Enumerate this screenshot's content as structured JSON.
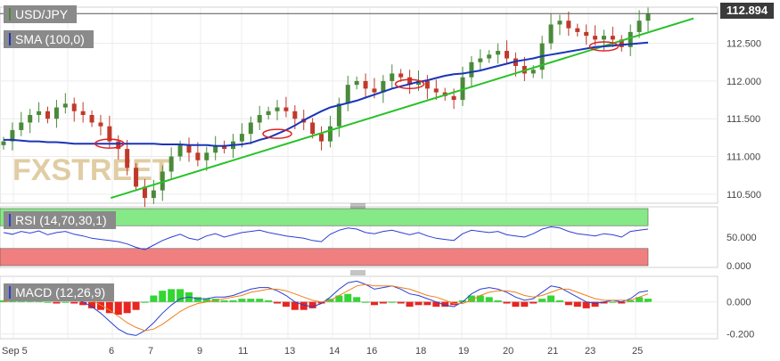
{
  "instrument": "USD/JPY",
  "last_price": "112.894",
  "watermark": "FXSTREET",
  "colors": {
    "candle_up": "#4a8a3a",
    "candle_down": "#c0392b",
    "sma": "#1a35b8",
    "trendline": "#27c227",
    "rsi_line": "#2b3fd6",
    "rsi_overbought_zone": "#86e887",
    "rsi_oversold_zone": "#f08080",
    "macd_line": "#2b3fd6",
    "signal_line": "#f07f1e",
    "hist_positive": "#33d633",
    "hist_negative": "#e8251f",
    "label_bg": "#8a8a8a",
    "price_tag_bg": "#3b3b3b"
  },
  "chart_data": [
    {
      "type": "candlestick",
      "title": "USD/JPY",
      "ylim": [
        110.38,
        112.98
      ],
      "y_ticks": [
        "112.500",
        "112.000",
        "111.500",
        "111.000",
        "110.500"
      ],
      "x_ticks": [
        "Sep 5",
        "6",
        "7",
        "9",
        "11",
        "13",
        "14",
        "16",
        "18",
        "19",
        "20",
        "21",
        "23",
        "25"
      ],
      "close_series": [
        111.2,
        111.35,
        111.45,
        111.55,
        111.6,
        111.5,
        111.65,
        111.7,
        111.6,
        111.55,
        111.45,
        111.4,
        111.2,
        111.1,
        110.85,
        110.6,
        110.45,
        110.55,
        110.8,
        111.0,
        111.15,
        111.05,
        110.95,
        111.05,
        111.15,
        111.1,
        111.2,
        111.3,
        111.45,
        111.55,
        111.6,
        111.65,
        111.6,
        111.5,
        111.45,
        111.3,
        111.2,
        111.4,
        111.7,
        111.95,
        112.0,
        111.9,
        111.85,
        112.0,
        112.1,
        112.05,
        111.95,
        112.0,
        111.9,
        111.85,
        111.8,
        111.75,
        112.05,
        112.25,
        112.3,
        112.35,
        112.4,
        112.3,
        112.2,
        112.1,
        112.15,
        112.5,
        112.75,
        112.8,
        112.7,
        112.65,
        112.6,
        112.55,
        112.6,
        112.55,
        112.45,
        112.65,
        112.8,
        112.894
      ],
      "series": [
        {
          "name": "SMA (100,0)",
          "values": [
            111.22,
            111.22,
            111.21,
            111.2,
            111.2,
            111.19,
            111.19,
            111.18,
            111.17,
            111.17,
            111.17,
            111.17,
            111.17,
            111.17,
            111.17,
            111.17,
            111.17,
            111.17,
            111.16,
            111.16,
            111.16,
            111.15,
            111.15,
            111.15,
            111.14,
            111.14,
            111.15,
            111.16,
            111.18,
            111.22,
            111.25,
            111.3,
            111.35,
            111.41,
            111.48,
            111.54,
            111.6,
            111.65,
            111.68,
            111.71,
            111.74,
            111.78,
            111.82,
            111.86,
            111.9,
            111.93,
            111.96,
            111.99,
            112.01,
            112.04,
            112.07,
            112.09,
            112.1,
            112.12,
            112.14,
            112.17,
            112.2,
            112.23,
            112.26,
            112.28,
            112.3,
            112.33,
            112.35,
            112.37,
            112.39,
            112.41,
            112.43,
            112.45,
            112.46,
            112.47,
            112.48,
            112.49,
            112.5,
            112.51
          ]
        },
        {
          "name": "trendline",
          "points": [
            [
              0.23,
              110.45
            ],
            [
              1.48,
              112.83
            ]
          ]
        }
      ]
    },
    {
      "type": "line",
      "title": "RSI (14,70,30,1)",
      "y_ticks": [
        "50.000",
        "0.000"
      ],
      "ylim": [
        0,
        100
      ],
      "overbought": 70,
      "oversold": 30,
      "series": [
        {
          "name": "RSI",
          "values": [
            58,
            55,
            60,
            57,
            61,
            54,
            58,
            60,
            55,
            52,
            48,
            46,
            44,
            42,
            38,
            32,
            28,
            36,
            44,
            50,
            55,
            48,
            45,
            52,
            56,
            50,
            54,
            58,
            60,
            62,
            58,
            55,
            52,
            50,
            48,
            44,
            42,
            55,
            62,
            66,
            64,
            58,
            56,
            60,
            62,
            58,
            54,
            58,
            52,
            48,
            46,
            44,
            56,
            62,
            60,
            58,
            60,
            54,
            52,
            50,
            56,
            64,
            68,
            66,
            60,
            56,
            54,
            52,
            56,
            54,
            50,
            60,
            62,
            64
          ]
        }
      ]
    },
    {
      "type": "line",
      "title": "MACD (12,26,9)",
      "y_ticks": [
        "0.000",
        "-0.200"
      ],
      "ylim": [
        -0.23,
        0.16
      ],
      "series": [
        {
          "name": "MACD",
          "values": [
            0.01,
            0.02,
            0.04,
            0.05,
            0.06,
            0.04,
            0.03,
            0.03,
            0.02,
            0.0,
            -0.03,
            -0.07,
            -0.12,
            -0.17,
            -0.2,
            -0.21,
            -0.18,
            -0.13,
            -0.07,
            -0.02,
            0.02,
            0.03,
            0.02,
            0.02,
            0.03,
            0.03,
            0.04,
            0.06,
            0.08,
            0.09,
            0.09,
            0.07,
            0.04,
            0.0,
            -0.02,
            -0.03,
            -0.01,
            0.03,
            0.08,
            0.12,
            0.13,
            0.11,
            0.08,
            0.09,
            0.1,
            0.08,
            0.05,
            0.04,
            0.02,
            0.0,
            -0.02,
            -0.03,
            0.0,
            0.05,
            0.08,
            0.09,
            0.08,
            0.06,
            0.03,
            0.01,
            0.02,
            0.06,
            0.1,
            0.09,
            0.06,
            0.03,
            0.0,
            -0.01,
            0.0,
            0.01,
            0.0,
            0.02,
            0.06,
            0.07
          ]
        },
        {
          "name": "Signal",
          "values": [
            0.0,
            0.01,
            0.02,
            0.03,
            0.04,
            0.04,
            0.04,
            0.03,
            0.03,
            0.02,
            0.01,
            -0.02,
            -0.05,
            -0.09,
            -0.13,
            -0.16,
            -0.18,
            -0.17,
            -0.14,
            -0.1,
            -0.06,
            -0.03,
            -0.01,
            0.0,
            0.01,
            0.02,
            0.03,
            0.04,
            0.06,
            0.07,
            0.08,
            0.08,
            0.07,
            0.05,
            0.03,
            0.01,
            0.0,
            0.01,
            0.04,
            0.07,
            0.1,
            0.11,
            0.1,
            0.1,
            0.1,
            0.09,
            0.08,
            0.06,
            0.04,
            0.03,
            0.01,
            -0.01,
            -0.01,
            0.01,
            0.04,
            0.06,
            0.07,
            0.07,
            0.06,
            0.04,
            0.03,
            0.04,
            0.06,
            0.08,
            0.08,
            0.06,
            0.04,
            0.02,
            0.01,
            0.01,
            0.01,
            0.01,
            0.03,
            0.05
          ]
        }
      ]
    }
  ],
  "touch_points_circled": [
    12,
    31,
    46,
    68
  ]
}
